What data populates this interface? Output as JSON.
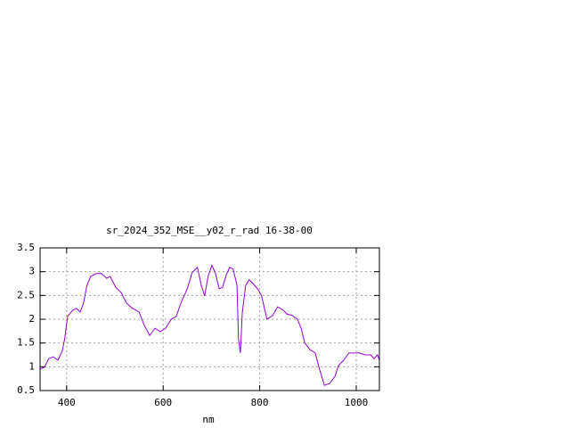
{
  "chart_data": {
    "type": "line",
    "title": "sr_2024_352_MSE__y02_r_rad 16-38-00",
    "xlabel": "nm",
    "x": [
      345,
      354,
      363,
      372,
      382,
      391,
      396,
      402,
      413,
      420,
      428,
      435,
      442,
      450,
      461,
      472,
      483,
      490,
      502,
      513,
      524,
      535,
      550,
      561,
      572,
      583,
      594,
      605,
      617,
      627,
      638,
      650,
      660,
      671,
      679,
      686,
      693,
      701,
      708,
      716,
      723,
      731,
      738,
      745,
      753,
      756,
      760,
      764,
      771,
      778,
      786,
      797,
      804,
      815,
      827,
      837,
      849,
      856,
      867,
      878,
      886,
      893,
      904,
      915,
      922,
      934,
      945,
      956,
      963,
      974,
      985,
      996,
      1007,
      1018,
      1030,
      1037,
      1044,
      1048
    ],
    "series": [
      {
        "color": "#9400d3",
        "values": [
          0.95,
          0.99,
          1.17,
          1.21,
          1.14,
          1.33,
          1.59,
          2.06,
          2.19,
          2.23,
          2.15,
          2.34,
          2.71,
          2.9,
          2.96,
          2.96,
          2.86,
          2.9,
          2.67,
          2.56,
          2.34,
          2.24,
          2.15,
          1.87,
          1.66,
          1.81,
          1.74,
          1.81,
          2.0,
          2.06,
          2.37,
          2.64,
          2.98,
          3.09,
          2.71,
          2.49,
          2.9,
          3.13,
          2.98,
          2.64,
          2.67,
          2.94,
          3.09,
          3.05,
          2.71,
          1.59,
          1.29,
          2.15,
          2.71,
          2.83,
          2.75,
          2.62,
          2.49,
          2.0,
          2.08,
          2.26,
          2.19,
          2.11,
          2.08,
          2.0,
          1.81,
          1.51,
          1.36,
          1.29,
          1.02,
          0.61,
          0.65,
          0.8,
          1.02,
          1.14,
          1.29,
          1.29,
          1.29,
          1.25,
          1.25,
          1.17,
          1.25,
          1.14
        ]
      }
    ],
    "xlim": [
      345,
      1048
    ],
    "ylim": [
      0.5,
      3.5
    ],
    "xticks": [
      400,
      600,
      800,
      1000
    ],
    "yticks": [
      0.5,
      1,
      1.5,
      2,
      2.5,
      3,
      3.5
    ],
    "grid": true
  }
}
